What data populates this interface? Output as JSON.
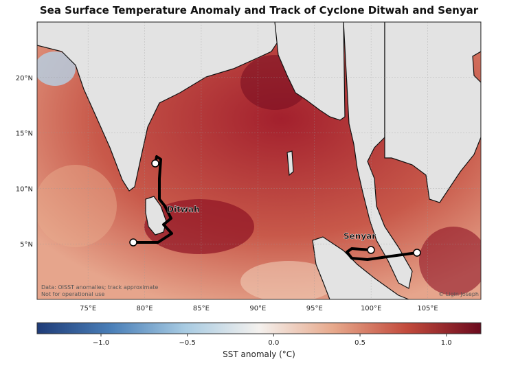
{
  "title": "Sea Surface Temperature Anomaly and Track of Cyclone Ditwah and Senyar",
  "map": {
    "lon_ticks": [
      "75°E",
      "80°E",
      "85°E",
      "90°E",
      "95°E",
      "100°E",
      "105°E"
    ],
    "lon_values": [
      75,
      80,
      85,
      90,
      95,
      100,
      105
    ],
    "lat_ticks": [
      "5°N",
      "10°N",
      "15°N",
      "20°N"
    ],
    "lat_values": [
      5,
      10,
      15,
      20
    ],
    "extent": {
      "lon": [
        70.5,
        109.7
      ],
      "lat": [
        0,
        25
      ]
    },
    "land_color": "#e3e3e3",
    "gridlines": true,
    "note_lines": [
      "Data: OISST anomalies; track approximate",
      "Not for operational use"
    ],
    "credit": "© Ligin Joseph",
    "tracks": [
      {
        "name": "Ditwah",
        "color": "#000000"
      },
      {
        "name": "Senyar",
        "color": "#000000"
      }
    ]
  },
  "colorbar": {
    "label": "SST anomaly (°C)",
    "range": [
      -1.37,
      1.2
    ],
    "ticks": [
      "−1.0",
      "−0.5",
      "0.0",
      "0.5",
      "1.0"
    ],
    "tick_values": [
      -1.0,
      -0.5,
      0.0,
      0.5,
      1.0
    ],
    "colormap": [
      "#1f3c78",
      "#4a7fb8",
      "#a8cbe2",
      "#f4f1ee",
      "#e7a98c",
      "#c24a3c",
      "#6b0a1e"
    ]
  }
}
